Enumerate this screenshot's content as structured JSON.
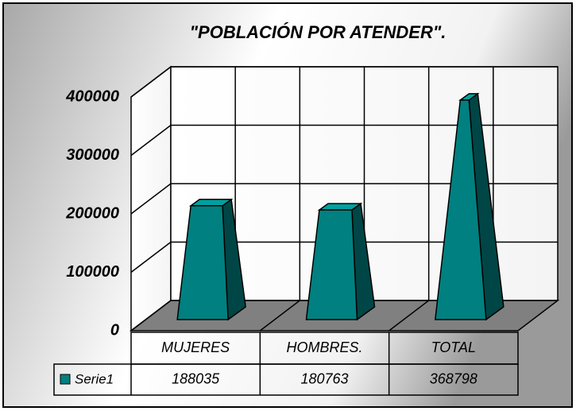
{
  "chart_data": {
    "type": "pyramid",
    "title": "\"POBLACIÓN POR ATENDER\".",
    "categories": [
      "MUJERES",
      "HOMBRES.",
      "TOTAL"
    ],
    "series": [
      {
        "name": "Serie1",
        "color": "#008080",
        "values": [
          188035,
          180763,
          368798
        ]
      }
    ],
    "ylim": [
      0,
      400000
    ],
    "yticks": [
      0,
      100000,
      200000,
      300000,
      400000
    ],
    "grid": true
  }
}
